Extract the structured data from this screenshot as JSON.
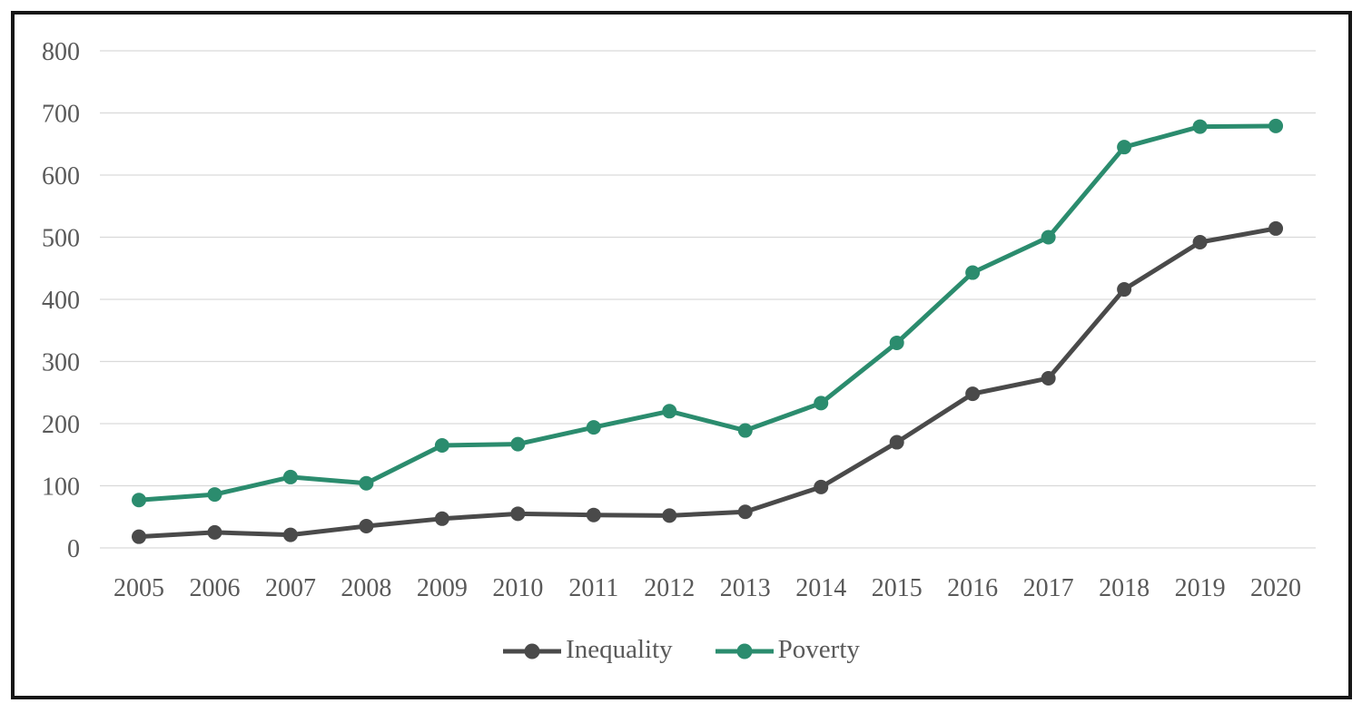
{
  "figure": {
    "background_color": "#FFFFFF",
    "border_color": "#161616"
  },
  "chart_data": {
    "type": "line",
    "title": "",
    "xlabel": "",
    "ylabel": "",
    "x": [
      "2005",
      "2006",
      "2007",
      "2008",
      "2009",
      "2010",
      "2011",
      "2012",
      "2013",
      "2014",
      "2015",
      "2016",
      "2017",
      "2018",
      "2019",
      "2020"
    ],
    "ylim": [
      0,
      800
    ],
    "yticks": [
      0,
      100,
      200,
      300,
      400,
      500,
      600,
      700,
      800
    ],
    "grid": "horizontal",
    "gridline_color": "#D9D9D9",
    "tick_label_color": "#595959",
    "legend_position": "bottom-center",
    "series": [
      {
        "name": "Inequality",
        "color": "#4A4A4A",
        "values": [
          18,
          25,
          21,
          35,
          47,
          55,
          53,
          52,
          58,
          98,
          170,
          248,
          273,
          416,
          492,
          514
        ]
      },
      {
        "name": "Poverty",
        "color": "#2B8C6E",
        "values": [
          77,
          86,
          114,
          104,
          165,
          167,
          194,
          220,
          189,
          233,
          330,
          443,
          500,
          645,
          678,
          679
        ]
      }
    ]
  }
}
